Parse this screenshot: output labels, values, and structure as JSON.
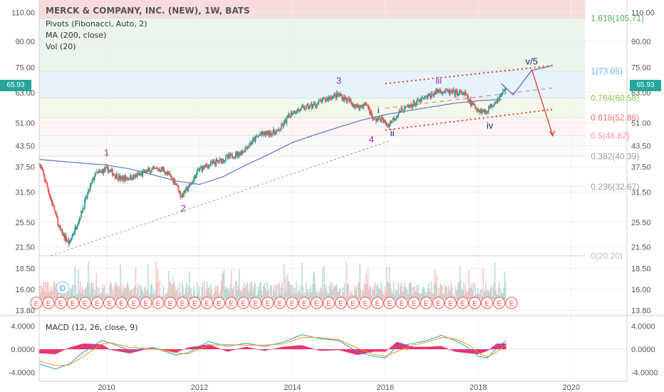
{
  "header": {
    "title": "MERCK & COMPANY, INC. (NEW), 1W, BATS",
    "indicators": [
      "Pivots (Fibonacci, Auto, 2)",
      "MA (200, close)",
      "Vol (20)"
    ],
    "macd_title": "MACD (12, 26, close, 9)",
    "last_price": "65.93"
  },
  "colors": {
    "up": "#26a69a",
    "down": "#ef5350",
    "ma": "#3f51b5",
    "wave_purple": "#9c27b0",
    "wave_blue": "#1a237e",
    "channel": "#e53935",
    "macd_line": "#2196f3",
    "signal_line": "#ff9800",
    "hist": "#e91e63"
  },
  "chart_data": [
    {
      "type": "candlestick",
      "title": "MERCK & COMPANY, INC. (NEW), 1W, BATS",
      "y_scale": "log",
      "y_ticks": [
        "110.00",
        "90.00",
        "75.00",
        "63.00",
        "51.00",
        "43.50",
        "37.50",
        "31.50",
        "25.50",
        "21.50",
        "18.50",
        "16.00",
        "13.80"
      ],
      "y_tick_values": [
        110,
        90,
        75,
        63,
        51,
        43.5,
        37.5,
        31.5,
        25.5,
        21.5,
        18.5,
        16,
        13.8
      ],
      "x_ticks": [
        "2010",
        "2012",
        "2014",
        "2016",
        "2018",
        "2020"
      ],
      "x_tick_values": [
        2010,
        2012,
        2014,
        2016,
        2018,
        2020
      ],
      "x_range": [
        2008.55,
        2021.2
      ],
      "y_range": [
        13.3,
        120
      ],
      "price_path": [
        [
          2008.55,
          38.5
        ],
        [
          2008.8,
          30
        ],
        [
          2009.0,
          24
        ],
        [
          2009.2,
          22
        ],
        [
          2009.45,
          27
        ],
        [
          2009.75,
          35.5
        ],
        [
          2010.0,
          37
        ],
        [
          2010.3,
          34.5
        ],
        [
          2010.6,
          35
        ],
        [
          2010.9,
          36.5
        ],
        [
          2011.2,
          37
        ],
        [
          2011.5,
          33.5
        ],
        [
          2011.6,
          30.5
        ],
        [
          2011.8,
          33
        ],
        [
          2012.0,
          37
        ],
        [
          2012.5,
          39.5
        ],
        [
          2012.9,
          41.5
        ],
        [
          2013.3,
          47
        ],
        [
          2013.7,
          48
        ],
        [
          2014.0,
          55
        ],
        [
          2014.5,
          58
        ],
        [
          2014.8,
          61
        ],
        [
          2015.0,
          62
        ],
        [
          2015.4,
          57
        ],
        [
          2015.6,
          58
        ],
        [
          2015.75,
          52
        ],
        [
          2015.9,
          52.5
        ],
        [
          2016.05,
          50
        ],
        [
          2016.3,
          55
        ],
        [
          2016.6,
          58
        ],
        [
          2016.8,
          60
        ],
        [
          2017.0,
          62
        ],
        [
          2017.15,
          64
        ],
        [
          2017.4,
          63
        ],
        [
          2017.7,
          62.5
        ],
        [
          2017.85,
          58
        ],
        [
          2018.0,
          56
        ],
        [
          2018.15,
          55
        ],
        [
          2018.3,
          58
        ],
        [
          2018.5,
          62
        ],
        [
          2018.6,
          65.93
        ]
      ],
      "ma_200": [
        [
          2008.55,
          39.5
        ],
        [
          2009.0,
          39
        ],
        [
          2009.5,
          38.5
        ],
        [
          2010.0,
          38
        ],
        [
          2010.5,
          37
        ],
        [
          2011.0,
          35.5
        ],
        [
          2011.5,
          34
        ],
        [
          2012.0,
          33.2
        ],
        [
          2012.5,
          35
        ],
        [
          2013.0,
          38
        ],
        [
          2013.5,
          41
        ],
        [
          2014.0,
          44.5
        ],
        [
          2014.5,
          47
        ],
        [
          2015.0,
          49.5
        ],
        [
          2015.5,
          52
        ],
        [
          2016.0,
          54
        ],
        [
          2016.5,
          55.5
        ],
        [
          2017.0,
          57
        ],
        [
          2017.5,
          58.5
        ],
        [
          2018.0,
          59.5
        ],
        [
          2018.5,
          60
        ]
      ],
      "pivots": [
        {
          "label": "1.618(105.71)",
          "value": 105.71,
          "color": "#4caf50"
        },
        {
          "label": "1(73.05)",
          "value": 73.05,
          "color": "#64b5f6"
        },
        {
          "label": "0.764(60.58)",
          "value": 60.58,
          "color": "#8bc34a"
        },
        {
          "label": "0.618(52.86)",
          "value": 52.86,
          "color": "#e57373"
        },
        {
          "label": "0.5(46.62)",
          "value": 46.62,
          "color": "#f48fb1"
        },
        {
          "label": "0.382(40.39)",
          "value": 40.39,
          "color": "#9e9e9e"
        },
        {
          "label": "0.236(32.67)",
          "value": 32.67,
          "color": "#9e9e9e"
        },
        {
          "label": "0(20.20)",
          "value": 20.2,
          "color": "#bdbdbd"
        }
      ],
      "wave_labels": [
        {
          "text": "1",
          "x": 2010.0,
          "y": 40.5,
          "color": "#9c27b0"
        },
        {
          "text": "2",
          "x": 2011.65,
          "y": 27.5,
          "color": "#9c27b0"
        },
        {
          "text": "3",
          "x": 2015.0,
          "y": 67,
          "color": "#9c27b0"
        },
        {
          "text": "4",
          "x": 2015.7,
          "y": 44.5,
          "color": "#9c27b0"
        },
        {
          "text": "i",
          "x": 2015.85,
          "y": 54.5,
          "color": "#1a237e"
        },
        {
          "text": "ii",
          "x": 2016.15,
          "y": 46.5,
          "color": "#1a237e"
        },
        {
          "text": "iii",
          "x": 2017.15,
          "y": 67,
          "color": "#9c27b0"
        },
        {
          "text": "iv",
          "x": 2018.25,
          "y": 49,
          "color": "#1a237e"
        },
        {
          "text": "v/5",
          "x": 2019.15,
          "y": 76.5,
          "color": "#1a237e"
        }
      ],
      "earnings_marker": "E",
      "dividend_marker": "D"
    },
    {
      "type": "line",
      "title": "MACD (12, 26, close, 9)",
      "y_ticks": [
        "4.0000",
        "0.0000",
        "-4.0000"
      ],
      "y_tick_values": [
        4,
        0,
        -4
      ],
      "y_range": [
        -5.5,
        5.5
      ],
      "series": [
        {
          "name": "MACD",
          "values": [
            [
              2008.55,
              -2.5
            ],
            [
              2008.9,
              -3.4
            ],
            [
              2009.2,
              -2.5
            ],
            [
              2009.5,
              -0.5
            ],
            [
              2009.9,
              1.5
            ],
            [
              2010.1,
              1.0
            ],
            [
              2010.5,
              -0.2
            ],
            [
              2011.0,
              0.3
            ],
            [
              2011.5,
              -1.0
            ],
            [
              2011.75,
              -0.6
            ],
            [
              2012.2,
              1.3
            ],
            [
              2012.6,
              0.5
            ],
            [
              2013.0,
              1.0
            ],
            [
              2013.4,
              0.5
            ],
            [
              2013.8,
              1.2
            ],
            [
              2014.2,
              2.5
            ],
            [
              2014.6,
              1.8
            ],
            [
              2015.0,
              1.5
            ],
            [
              2015.4,
              -0.5
            ],
            [
              2015.75,
              -1.2
            ],
            [
              2016.0,
              -1.5
            ],
            [
              2016.25,
              0.5
            ],
            [
              2016.6,
              1.0
            ],
            [
              2016.9,
              1.5
            ],
            [
              2017.2,
              2.4
            ],
            [
              2017.5,
              1.5
            ],
            [
              2017.8,
              0.2
            ],
            [
              2018.0,
              -1.2
            ],
            [
              2018.2,
              -1.5
            ],
            [
              2018.4,
              0.2
            ],
            [
              2018.6,
              1.5
            ]
          ]
        },
        {
          "name": "Signal",
          "values": [
            [
              2008.55,
              -2.0
            ],
            [
              2008.9,
              -2.8
            ],
            [
              2009.2,
              -2.7
            ],
            [
              2009.5,
              -1.2
            ],
            [
              2009.9,
              0.9
            ],
            [
              2010.1,
              1.1
            ],
            [
              2010.5,
              0.3
            ],
            [
              2011.0,
              0.1
            ],
            [
              2011.5,
              -0.6
            ],
            [
              2011.75,
              -0.8
            ],
            [
              2012.2,
              0.7
            ],
            [
              2012.6,
              0.8
            ],
            [
              2013.0,
              0.7
            ],
            [
              2013.4,
              0.7
            ],
            [
              2013.8,
              0.9
            ],
            [
              2014.2,
              2.0
            ],
            [
              2014.6,
              2.0
            ],
            [
              2015.0,
              1.6
            ],
            [
              2015.4,
              0.2
            ],
            [
              2015.75,
              -0.9
            ],
            [
              2016.0,
              -1.2
            ],
            [
              2016.25,
              -0.4
            ],
            [
              2016.6,
              0.7
            ],
            [
              2016.9,
              1.2
            ],
            [
              2017.2,
              2.0
            ],
            [
              2017.5,
              1.8
            ],
            [
              2017.8,
              0.7
            ],
            [
              2018.0,
              -0.6
            ],
            [
              2018.2,
              -1.3
            ],
            [
              2018.4,
              -0.5
            ],
            [
              2018.6,
              0.8
            ]
          ]
        }
      ]
    }
  ]
}
